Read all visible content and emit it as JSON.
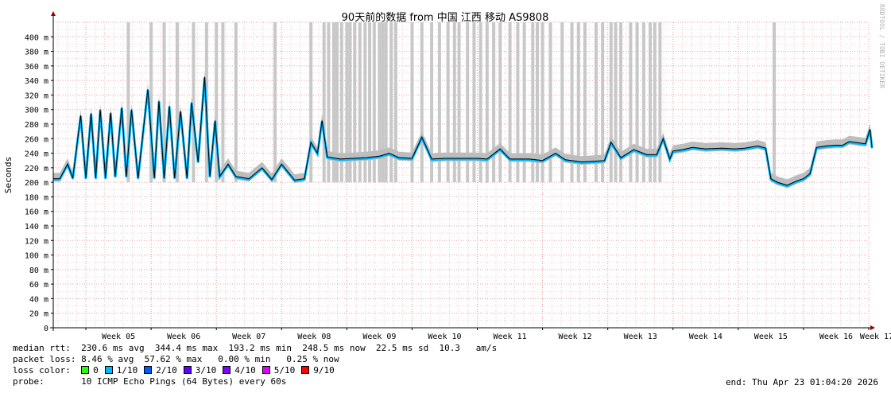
{
  "chart_data": {
    "type": "area",
    "title": "90天前的数据 from 中国 江西 移动 AS9808",
    "ylabel": "Seconds",
    "watermark": "RRDTOOL / TOBI OETIKER",
    "x_categories": [
      "Week 05",
      "Week 06",
      "Week 07",
      "Week 08",
      "Week 09",
      "Week 10",
      "Week 11",
      "Week 12",
      "Week 13",
      "Week 14",
      "Week 15",
      "Week 16",
      "Week 17"
    ],
    "ylim": [
      0,
      420
    ],
    "y_ticks": [
      0,
      20,
      40,
      60,
      80,
      100,
      120,
      140,
      160,
      180,
      200,
      220,
      240,
      260,
      280,
      300,
      320,
      340,
      360,
      380,
      400
    ],
    "y_tick_labels": [
      "0",
      "20 m",
      "40 m",
      "60 m",
      "80 m",
      "100 m",
      "120 m",
      "140 m",
      "160 m",
      "180 m",
      "200 m",
      "220 m",
      "240 m",
      "260 m",
      "280 m",
      "300 m",
      "320 m",
      "340 m",
      "360 m",
      "380 m",
      "400 m"
    ],
    "x_range_weeks": [
      4.5,
      17
    ],
    "grid": true,
    "series": [
      {
        "name": "median rtt",
        "points": [
          [
            4.5,
            205
          ],
          [
            4.6,
            205
          ],
          [
            4.72,
            225
          ],
          [
            4.8,
            206
          ],
          [
            4.92,
            292
          ],
          [
            5.0,
            206
          ],
          [
            5.08,
            295
          ],
          [
            5.15,
            206
          ],
          [
            5.22,
            300
          ],
          [
            5.3,
            206
          ],
          [
            5.38,
            296
          ],
          [
            5.45,
            208
          ],
          [
            5.55,
            303
          ],
          [
            5.62,
            208
          ],
          [
            5.7,
            300
          ],
          [
            5.8,
            206
          ],
          [
            5.95,
            328
          ],
          [
            6.05,
            206
          ],
          [
            6.12,
            312
          ],
          [
            6.2,
            206
          ],
          [
            6.28,
            305
          ],
          [
            6.36,
            206
          ],
          [
            6.45,
            298
          ],
          [
            6.55,
            206
          ],
          [
            6.62,
            310
          ],
          [
            6.72,
            228
          ],
          [
            6.82,
            345
          ],
          [
            6.9,
            208
          ],
          [
            6.98,
            285
          ],
          [
            7.05,
            208
          ],
          [
            7.18,
            225
          ],
          [
            7.3,
            208
          ],
          [
            7.5,
            205
          ],
          [
            7.7,
            220
          ],
          [
            7.85,
            204
          ],
          [
            8.0,
            225
          ],
          [
            8.2,
            203
          ],
          [
            8.35,
            205
          ],
          [
            8.45,
            255
          ],
          [
            8.55,
            240
          ],
          [
            8.62,
            285
          ],
          [
            8.7,
            235
          ],
          [
            8.9,
            232
          ],
          [
            9.1,
            233
          ],
          [
            9.3,
            234
          ],
          [
            9.5,
            236
          ],
          [
            9.65,
            240
          ],
          [
            9.8,
            234
          ],
          [
            10.0,
            233
          ],
          [
            10.15,
            262
          ],
          [
            10.3,
            232
          ],
          [
            10.5,
            233
          ],
          [
            10.8,
            233
          ],
          [
            11.0,
            233
          ],
          [
            11.15,
            232
          ],
          [
            11.35,
            246
          ],
          [
            11.5,
            232
          ],
          [
            11.8,
            232
          ],
          [
            12.0,
            230
          ],
          [
            12.2,
            240
          ],
          [
            12.35,
            231
          ],
          [
            12.6,
            228
          ],
          [
            12.8,
            229
          ],
          [
            12.95,
            230
          ],
          [
            13.05,
            255
          ],
          [
            13.2,
            234
          ],
          [
            13.4,
            245
          ],
          [
            13.6,
            238
          ],
          [
            13.75,
            238
          ],
          [
            13.85,
            260
          ],
          [
            13.95,
            232
          ],
          [
            14.0,
            243
          ],
          [
            14.15,
            245
          ],
          [
            14.3,
            248
          ],
          [
            14.5,
            246
          ],
          [
            14.75,
            247
          ],
          [
            14.95,
            246
          ],
          [
            15.1,
            247
          ],
          [
            15.3,
            250
          ],
          [
            15.42,
            247
          ],
          [
            15.5,
            205
          ],
          [
            15.6,
            200
          ],
          [
            15.75,
            196
          ],
          [
            15.9,
            202
          ],
          [
            16.0,
            205
          ],
          [
            16.1,
            212
          ],
          [
            16.2,
            248
          ],
          [
            16.35,
            250
          ],
          [
            16.5,
            251
          ],
          [
            16.6,
            251
          ],
          [
            16.7,
            256
          ],
          [
            16.95,
            253
          ],
          [
            17.02,
            273
          ],
          [
            17.05,
            248
          ]
        ]
      }
    ],
    "tall_spikes_weeks": [
      5.65,
      6.0,
      6.2,
      6.4,
      6.65,
      6.85,
      7.0,
      7.1,
      7.3,
      7.9,
      8.45,
      8.65,
      8.72,
      8.8,
      8.85,
      8.92,
      9.0,
      9.05,
      9.12,
      9.2,
      9.28,
      9.35,
      9.42,
      9.5,
      9.55,
      9.6,
      9.68,
      9.75,
      10.0,
      10.15,
      10.3,
      10.42,
      10.55,
      10.65,
      10.72,
      10.85,
      10.95,
      11.05,
      11.15,
      11.25,
      11.35,
      11.5,
      11.62,
      11.72,
      11.85,
      11.92,
      12.0,
      12.12,
      12.3,
      12.45,
      12.55,
      12.65,
      12.82,
      12.92,
      13.05,
      13.12,
      13.2,
      13.35,
      13.45,
      13.55,
      13.65,
      13.72,
      13.8,
      15.55
    ]
  },
  "stats": {
    "rtt_label": "median rtt:",
    "rtt_values": "230.6 ms avg  344.4 ms max  193.2 ms min  248.5 ms now  22.5 ms sd  10.3   am/s",
    "loss_label": "packet loss:",
    "loss_values": "8.46 % avg  57.62 % max   0.00 % min   0.25 % now",
    "color_label": "loss color:",
    "loss_colors": [
      {
        "label": "0",
        "color": "#26ff00"
      },
      {
        "label": "1/10",
        "color": "#00b8ff"
      },
      {
        "label": "2/10",
        "color": "#0059ff"
      },
      {
        "label": "3/10",
        "color": "#5e00ff"
      },
      {
        "label": "4/10",
        "color": "#7e00ff"
      },
      {
        "label": "5/10",
        "color": "#dd00ff"
      },
      {
        "label": "9/10",
        "color": "#ff0000"
      }
    ],
    "probe_label": "probe:",
    "probe_value": "10 ICMP Echo Pings (64 Bytes) every 60s",
    "end_value": "end: Thu Apr 23 01:04:20 2026"
  }
}
